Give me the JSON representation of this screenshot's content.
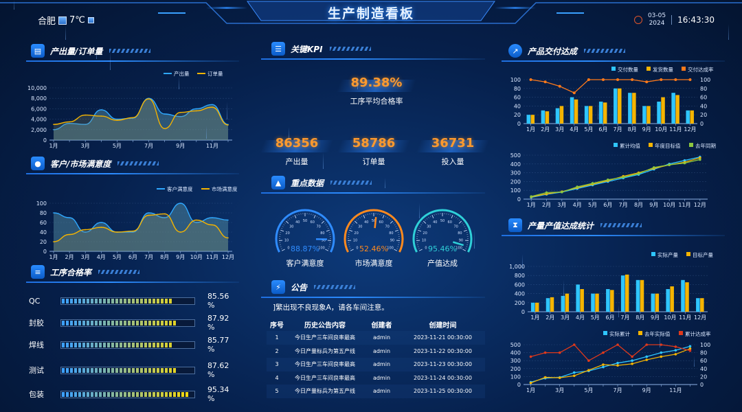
{
  "header": {
    "title": "生产制造看板",
    "city": "合肥",
    "temperature": "7℃",
    "date_md": "03-05",
    "date_year": "2024",
    "time": "16:43:30"
  },
  "sections": {
    "output_orders": "产出量/订单量",
    "satisfaction": "客户/市场满意度",
    "process_pass": "工序合格率",
    "kpi": "关键KPI",
    "key_data": "重点数据",
    "notice": "公告",
    "delivery": "产品交付达成",
    "production_value": "产量产值达成统计"
  },
  "kpi": {
    "pass_rate": {
      "value": "89.38%",
      "label": "工序平均合格率"
    },
    "output": {
      "value": "86356",
      "label": "产出量"
    },
    "orders": {
      "value": "58786",
      "label": "订单量"
    },
    "input": {
      "value": "36731",
      "label": "投入量"
    }
  },
  "gauges": [
    {
      "value": "88.87%",
      "label": "客户满意度",
      "pct": 88.87,
      "color": "#2f8cff"
    },
    {
      "value": "52.46%",
      "label": "市场满意度",
      "pct": 52.46,
      "color": "#ff8a1e"
    },
    {
      "value": "95.46%",
      "label": "产值达成",
      "pct": 95.46,
      "color": "#2fd0d8"
    }
  ],
  "process_pass": [
    {
      "name": "QC",
      "pct": "85.56 %",
      "value": 85.56
    },
    {
      "name": "封胶",
      "pct": "87.92 %",
      "value": 87.92
    },
    {
      "name": "焊线",
      "pct": "85.77 %",
      "value": 85.77
    },
    {
      "name": "测试",
      "pct": "87.62 %",
      "value": 87.62
    },
    {
      "name": "包装",
      "pct": "95.34 %",
      "value": 95.34
    }
  ],
  "notice": {
    "text": "]繁出现不良现象A，请各车间注意。",
    "columns": [
      "序号",
      "历史公告内容",
      "创建者",
      "创建时间"
    ],
    "rows": [
      [
        "1",
        "今日生产三车间良率最高",
        "admin",
        "2023-11-21 00:30:00"
      ],
      [
        "2",
        "今日产量标兵为第五产线",
        "admin",
        "2023-11-22 00:30:00"
      ],
      [
        "3",
        "今日生产三车间良率最高",
        "admin",
        "2023-11-23 00:30:00"
      ],
      [
        "4",
        "今日生产三车间良率最高",
        "admin",
        "2023-11-24 00:30:00"
      ],
      [
        "5",
        "今日产量标兵为第五产线",
        "admin",
        "2023-11-25 00:30:00"
      ]
    ]
  },
  "colors": {
    "accent": "#2f8cff",
    "orange": "#ff9a2e",
    "cyan": "#2fd0d8",
    "yellow": "#f5b400",
    "red": "#e0391b",
    "green": "#8cc63f",
    "bg": "#06204c"
  },
  "chart_data": [
    {
      "id": "output_orders",
      "type": "area",
      "categories": [
        "1月",
        "2月",
        "3月",
        "4月",
        "5月",
        "6月",
        "7月",
        "8月",
        "9月",
        "10月",
        "11月",
        "12月"
      ],
      "tick_labels": [
        "1月",
        "3月",
        "5月",
        "7月",
        "9月",
        "11月"
      ],
      "y_ticks": [
        "0",
        "2,000",
        "4,000",
        "6,000",
        "8,000",
        "10,000"
      ],
      "ylim": [
        0,
        10000
      ],
      "series": [
        {
          "name": "产出量",
          "color": "#2fa8ff",
          "values": [
            2000,
            3200,
            3000,
            5800,
            4000,
            4200,
            8000,
            5000,
            4500,
            6000,
            6800,
            3000
          ]
        },
        {
          "name": "订单量",
          "color": "#f5b400",
          "values": [
            3000,
            3500,
            4800,
            4600,
            3800,
            4300,
            7900,
            2200,
            5300,
            5600,
            6300,
            2900
          ]
        }
      ]
    },
    {
      "id": "satisfaction",
      "type": "area",
      "categories": [
        "1月",
        "2月",
        "3月",
        "4月",
        "5月",
        "6月",
        "7月",
        "8月",
        "9月",
        "10月",
        "11月",
        "12月"
      ],
      "tick_labels": [
        "1月",
        "2月",
        "3月",
        "4月",
        "5月",
        "6月",
        "7月",
        "8月",
        "9月",
        "10月",
        "11月",
        "12月"
      ],
      "y_ticks": [
        "0",
        "20",
        "40",
        "60",
        "80",
        "100"
      ],
      "ylim": [
        0,
        100
      ],
      "series": [
        {
          "name": "客户满意度",
          "color": "#2fa8ff",
          "values": [
            80,
            70,
            40,
            60,
            40,
            40,
            80,
            70,
            100,
            60,
            70,
            65
          ]
        },
        {
          "name": "市场满意度",
          "color": "#f5b400",
          "values": [
            20,
            35,
            45,
            50,
            40,
            42,
            75,
            78,
            40,
            65,
            55,
            28
          ]
        }
      ]
    },
    {
      "id": "delivery",
      "type": "bar",
      "categories": [
        "1月",
        "2月",
        "3月",
        "4月",
        "5月",
        "6月",
        "7月",
        "8月",
        "9月",
        "10月",
        "11月",
        "12月"
      ],
      "y_ticks": [
        "0",
        "20",
        "40",
        "60",
        "80",
        "100"
      ],
      "y2_ticks": [
        "0",
        "20",
        "40",
        "60",
        "80",
        "100"
      ],
      "ylim": [
        0,
        100
      ],
      "series": [
        {
          "name": "交付数量",
          "color": "#2fc6ff",
          "values": [
            20,
            30,
            35,
            60,
            40,
            50,
            80,
            70,
            40,
            50,
            70,
            30
          ]
        },
        {
          "name": "发货数量",
          "color": "#f5b400",
          "values": [
            20,
            28,
            40,
            55,
            40,
            48,
            80,
            70,
            40,
            60,
            65,
            30
          ]
        },
        {
          "name": "交付达成率",
          "color": "#ff7a1a",
          "axis": "right",
          "values": [
            100,
            95,
            85,
            70,
            100,
            100,
            100,
            100,
            95,
            100,
            100,
            100
          ]
        }
      ]
    },
    {
      "id": "delivery_cumulative",
      "type": "line",
      "categories": [
        "1月",
        "2月",
        "3月",
        "4月",
        "5月",
        "6月",
        "7月",
        "8月",
        "9月",
        "10月",
        "11月",
        "12月"
      ],
      "y_ticks": [
        "0",
        "100",
        "200",
        "300",
        "400",
        "500"
      ],
      "ylim": [
        0,
        500
      ],
      "series": [
        {
          "name": "累计均值",
          "color": "#2fc6ff",
          "values": [
            20,
            55,
            80,
            120,
            160,
            200,
            240,
            280,
            340,
            400,
            440,
            480
          ]
        },
        {
          "name": "年度目标值",
          "color": "#f5b400",
          "values": [
            25,
            60,
            85,
            130,
            170,
            210,
            260,
            300,
            350,
            390,
            420,
            470
          ]
        },
        {
          "name": "去年同期",
          "color": "#8cc63f",
          "values": [
            30,
            75,
            80,
            140,
            180,
            220,
            250,
            290,
            360,
            390,
            410,
            450
          ]
        }
      ]
    },
    {
      "id": "production_value",
      "type": "bar",
      "categories": [
        "1月",
        "2月",
        "3月",
        "4月",
        "5月",
        "6月",
        "7月",
        "8月",
        "9月",
        "10月",
        "11月",
        "12月"
      ],
      "y_ticks": [
        "0",
        "200",
        "400",
        "600",
        "800",
        "1,000"
      ],
      "ylim": [
        0,
        1000
      ],
      "series": [
        {
          "name": "实际产量",
          "color": "#2fc6ff",
          "values": [
            200,
            300,
            350,
            600,
            400,
            500,
            800,
            700,
            400,
            500,
            700,
            300
          ]
        },
        {
          "name": "目标产量",
          "color": "#f5b400",
          "values": [
            200,
            320,
            400,
            500,
            400,
            480,
            820,
            700,
            400,
            560,
            650,
            300
          ]
        }
      ]
    },
    {
      "id": "production_value_cumulative",
      "type": "line",
      "categories": [
        "1月",
        "2月",
        "3月",
        "4月",
        "5月",
        "6月",
        "7月",
        "8月",
        "9月",
        "10月",
        "11月",
        "12月"
      ],
      "tick_labels": [
        "1月",
        "3月",
        "5月",
        "7月",
        "9月",
        "11月"
      ],
      "y_ticks": [
        "0",
        "100",
        "200",
        "300",
        "400",
        "500"
      ],
      "y2_ticks": [
        "0",
        "20",
        "40",
        "60",
        "80",
        "100"
      ],
      "ylim": [
        0,
        500
      ],
      "series": [
        {
          "name": "实际累计",
          "color": "#2fc6ff",
          "values": [
            30,
            80,
            90,
            150,
            170,
            220,
            270,
            300,
            350,
            400,
            430,
            480
          ]
        },
        {
          "name": "去年实际值",
          "color": "#f5b400",
          "values": [
            20,
            90,
            85,
            110,
            180,
            250,
            240,
            260,
            310,
            350,
            380,
            450
          ]
        },
        {
          "name": "累计达成率",
          "color": "#e0391b",
          "axis": "right",
          "values": [
            70,
            80,
            80,
            100,
            60,
            80,
            100,
            70,
            100,
            100,
            95,
            85
          ]
        }
      ]
    }
  ]
}
